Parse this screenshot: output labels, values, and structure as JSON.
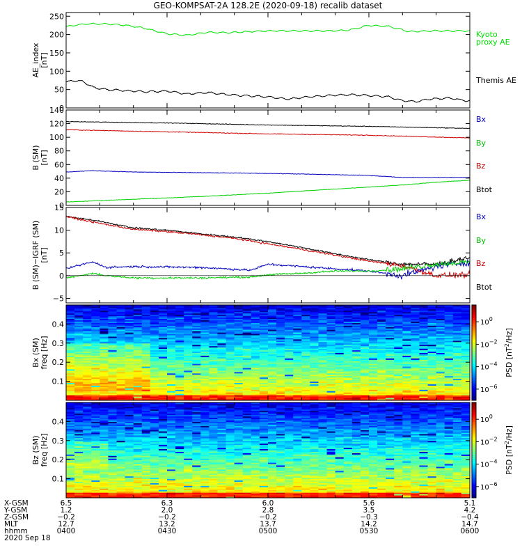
{
  "title": "GEO-KOMPSAT-2A 128.2E (2020-09-18) recalib dataset",
  "chart_data": [
    {
      "type": "line",
      "ylabel_lines": [
        "AE_index",
        "[nT]"
      ],
      "ylim": [
        0,
        260
      ],
      "yticks": [
        0,
        50,
        100,
        150,
        200,
        250
      ],
      "xlim": [
        0,
        120
      ],
      "series": [
        {
          "name": "Kyoto proxy AE",
          "legend_lines": [
            "Kyoto",
            "proxy AE"
          ],
          "color": "#00e000",
          "x": [
            0,
            3,
            6,
            12,
            18,
            24,
            30,
            36,
            42,
            48,
            54,
            60,
            66,
            72,
            78,
            84,
            90,
            96,
            102,
            108,
            114,
            120
          ],
          "y": [
            221,
            226,
            229,
            229,
            225,
            216,
            202,
            198,
            206,
            205,
            208,
            210,
            210,
            210,
            210,
            212,
            225,
            222,
            208,
            210,
            210,
            210
          ]
        },
        {
          "name": "Themis AE",
          "legend_lines": [
            "Themis AE"
          ],
          "color": "#000000",
          "x": [
            0,
            2,
            5,
            8,
            12,
            18,
            24,
            30,
            36,
            42,
            48,
            54,
            60,
            66,
            72,
            78,
            84,
            90,
            96,
            100,
            104,
            108,
            114,
            120
          ],
          "y": [
            70,
            75,
            72,
            56,
            50,
            47,
            44,
            46,
            38,
            42,
            36,
            33,
            30,
            24,
            30,
            34,
            36,
            34,
            30,
            20,
            17,
            24,
            27,
            18
          ]
        }
      ]
    },
    {
      "type": "line",
      "ylabel_lines": [
        "B (SM)",
        "[nT]"
      ],
      "ylim": [
        0,
        140
      ],
      "yticks": [
        0,
        20,
        40,
        60,
        80,
        100,
        120,
        140
      ],
      "xlim": [
        0,
        120
      ],
      "legend": [
        "Bx",
        "By",
        "Bz",
        "Btot"
      ],
      "legend_colors": [
        "#0000c0",
        "#00c000",
        "#c00000",
        "#000000"
      ],
      "series": [
        {
          "name": "Btot",
          "color": "#000000",
          "x": [
            0,
            30,
            60,
            90,
            120
          ],
          "y": [
            123,
            121,
            118,
            116,
            113
          ]
        },
        {
          "name": "Bz",
          "color": "#d00000",
          "x": [
            0,
            30,
            60,
            90,
            120
          ],
          "y": [
            111,
            108,
            105,
            103,
            99
          ]
        },
        {
          "name": "Bx",
          "color": "#0000c0",
          "x": [
            0,
            8,
            20,
            40,
            60,
            80,
            90,
            100,
            120
          ],
          "y": [
            49,
            51,
            49,
            48,
            47,
            45,
            44,
            41,
            41
          ]
        },
        {
          "name": "By",
          "color": "#00d000",
          "x": [
            0,
            20,
            40,
            60,
            80,
            100,
            110,
            120
          ],
          "y": [
            5,
            9,
            13,
            18,
            24,
            30,
            34,
            37
          ]
        }
      ]
    },
    {
      "type": "line",
      "ylabel_lines": [
        "B (SM)−IGRF (SM)",
        "[nT]"
      ],
      "ylim": [
        -6,
        15
      ],
      "yticks": [
        -5,
        0,
        5,
        10,
        15
      ],
      "xlim": [
        0,
        120
      ],
      "legend": [
        "Bx",
        "By",
        "Bz",
        "Btot"
      ],
      "legend_colors": [
        "#0000c0",
        "#00c000",
        "#c00000",
        "#000000"
      ],
      "series": [
        {
          "name": "Btot",
          "color": "#000000",
          "x": [
            0,
            10,
            20,
            30,
            40,
            50,
            60,
            70,
            80,
            90,
            100,
            110,
            120
          ],
          "y": [
            13,
            12,
            10.5,
            10,
            9.2,
            8.5,
            7.5,
            6.2,
            4.8,
            3.5,
            2.5,
            2.5,
            4
          ]
        },
        {
          "name": "Bz",
          "color": "#d00000",
          "x": [
            0,
            10,
            20,
            30,
            40,
            50,
            60,
            70,
            80,
            90,
            100,
            110,
            120
          ],
          "y": [
            13,
            11.5,
            10.2,
            9.7,
            9,
            8.2,
            7,
            5.8,
            4.5,
            3.2,
            2.2,
            0,
            0.2
          ]
        },
        {
          "name": "Bx",
          "color": "#0000c0",
          "x": [
            0,
            5,
            8,
            12,
            20,
            40,
            55,
            60,
            70,
            80,
            90,
            95,
            100,
            110,
            120
          ],
          "y": [
            1.5,
            2.5,
            3,
            1.8,
            2,
            1.8,
            1.2,
            2.5,
            2,
            1.5,
            1,
            0.5,
            0,
            2,
            3
          ]
        },
        {
          "name": "By",
          "color": "#00d000",
          "x": [
            0,
            8,
            12,
            20,
            40,
            55,
            60,
            70,
            80,
            90,
            100,
            110,
            120
          ],
          "y": [
            -0.5,
            0.5,
            0,
            -0.5,
            -0.5,
            -0.3,
            0.2,
            0.5,
            1,
            1,
            1.5,
            2.5,
            3
          ]
        }
      ]
    },
    {
      "type": "heatmap",
      "ylabel_lines": [
        "Bx (SM)",
        "freq [Hz]"
      ],
      "ylim": [
        0,
        0.5
      ],
      "yticks": [
        0.1,
        0.2,
        0.3,
        0.4
      ],
      "colorbar_label": "PSD [nT^2/Hz]",
      "colorbar_ticks": [
        "10^0",
        "10^-2",
        "10^-4",
        "10^-6"
      ],
      "colorbar_tick_values": [
        0,
        -2,
        -4,
        -6
      ],
      "colorbar_range": [
        -7,
        1.5
      ]
    },
    {
      "type": "heatmap",
      "ylabel_lines": [
        "Bz (SM)",
        "freq [Hz]"
      ],
      "ylim": [
        0,
        0.5
      ],
      "yticks": [
        0.1,
        0.2,
        0.3,
        0.4
      ],
      "colorbar_label": "PSD [nT^2/Hz]",
      "colorbar_ticks": [
        "10^0",
        "10^-2",
        "10^-4",
        "10^-6"
      ],
      "colorbar_tick_values": [
        0,
        -2,
        -4,
        -6
      ],
      "colorbar_range": [
        -7,
        1.5
      ]
    }
  ],
  "xaxis_table": {
    "row_labels": [
      "X-GSM",
      "Y-GSM",
      "Z-GSM",
      "MLT",
      "hhmm",
      "2020 Sep 18"
    ],
    "columns": [
      {
        "minute": 0,
        "values": [
          "6.5",
          "1.2",
          "-0.2",
          "12.7",
          "0400"
        ]
      },
      {
        "minute": 30,
        "values": [
          "6.3",
          "2.0",
          "-0.2",
          "13.2",
          "0430"
        ]
      },
      {
        "minute": 60,
        "values": [
          "6.0",
          "2.8",
          "-0.2",
          "13.7",
          "0500"
        ]
      },
      {
        "minute": 90,
        "values": [
          "5.6",
          "3.5",
          "-0.3",
          "14.2",
          "0530"
        ]
      },
      {
        "minute": 120,
        "values": [
          "5.1",
          "4.2",
          "-0.4",
          "14.7",
          "0600"
        ]
      }
    ]
  }
}
